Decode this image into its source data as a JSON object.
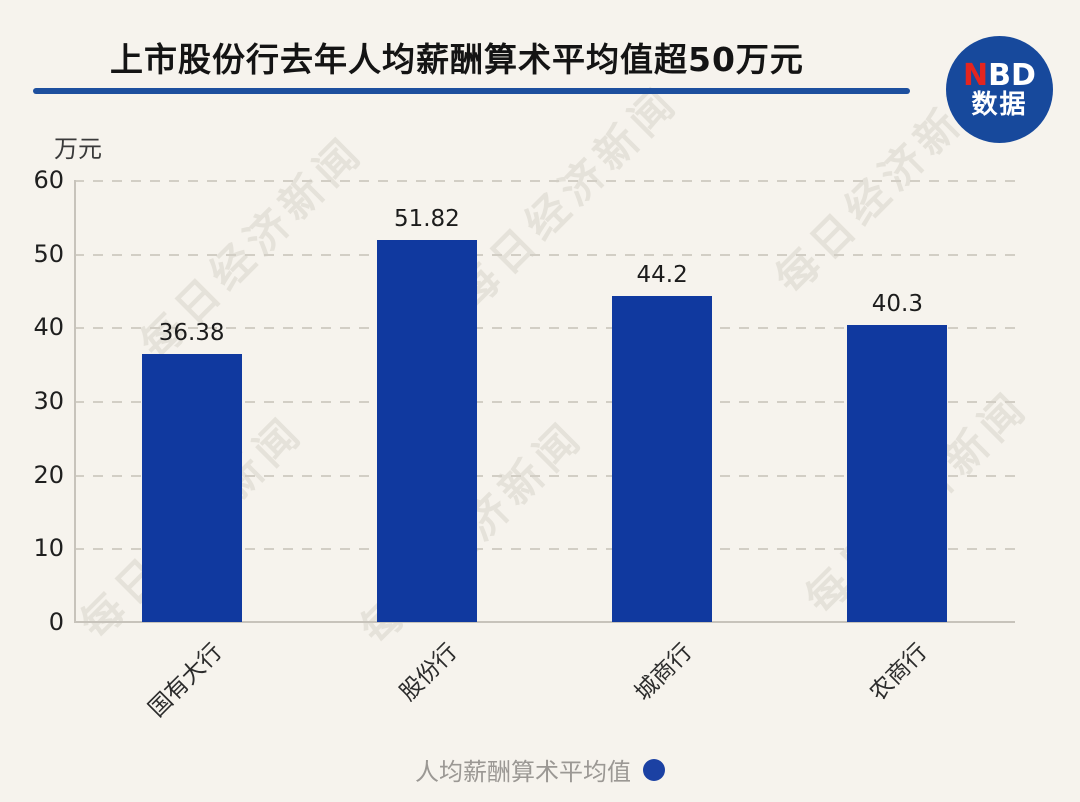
{
  "header": {
    "logo": {
      "nbd_red": "N",
      "nbd_rest": "BD",
      "sub": "数据"
    }
  },
  "watermark": {
    "text": "每日经济新闻"
  },
  "colors": {
    "background": "#f6f3ed",
    "bar": "#10399f",
    "title_underline": "#1d4f9e",
    "logo_circle": "#17499c",
    "logo_n_red": "#e4251f",
    "grid": "#d2cec5",
    "axis": "#c7c3bb",
    "legend_text": "#9b9894",
    "legend_dot": "#1b41a3"
  },
  "chart_data": {
    "type": "bar",
    "title": "上市股份行去年人均薪酬算术平均值超50万元",
    "unit_label": "万元",
    "categories": [
      "国有大行",
      "股份行",
      "城商行",
      "农商行"
    ],
    "values": [
      36.38,
      51.82,
      44.2,
      40.3
    ],
    "value_labels": [
      "36.38",
      "51.82",
      "44.2",
      "40.3"
    ],
    "ylim": [
      0,
      60
    ],
    "yticks": [
      0,
      10,
      20,
      30,
      40,
      50,
      60
    ],
    "grid": "horizontal-dashed",
    "legend": {
      "label": "人均薪酬算术平均值",
      "position": "bottom-center"
    }
  }
}
